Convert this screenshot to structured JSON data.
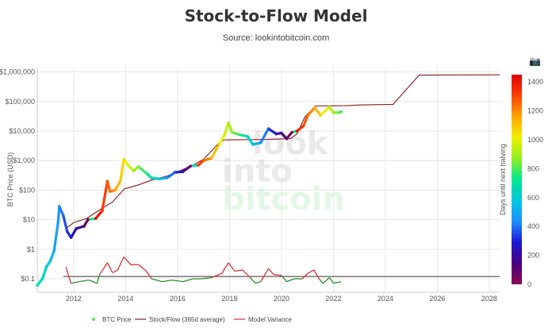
{
  "header": {
    "title": "Stock-to-Flow Model",
    "subtitle": "Source: lookintobitcoin.com",
    "camera_icon": "camera-icon"
  },
  "watermark": {
    "line1": "look",
    "line2": "into",
    "line3": "bitcoin"
  },
  "chart_data": {
    "type": "line",
    "title": "Stock-to-Flow Model",
    "ylabel": "BTC Price (USD)",
    "yscale": "log",
    "ylim": [
      0.035,
      1500000
    ],
    "xlim": [
      2010.6,
      2028.4
    ],
    "x_ticks": [
      "2012",
      "2014",
      "2016",
      "2018",
      "2020",
      "2022",
      "2024",
      "2026",
      "2028"
    ],
    "y_ticks": [
      {
        "value": 1000000,
        "label": "$1,000,000"
      },
      {
        "value": 100000,
        "label": "$100,000"
      },
      {
        "value": 10000,
        "label": "$10,000"
      },
      {
        "value": 1000,
        "label": "$1,000"
      },
      {
        "value": 100,
        "label": "$100"
      },
      {
        "value": 10,
        "label": "$10"
      },
      {
        "value": 1,
        "label": "$1"
      },
      {
        "value": 0.1,
        "label": "$0.1"
      }
    ],
    "colorbar": {
      "label": "Days until next halving",
      "min": 0,
      "max": 1450,
      "ticks": [
        "0",
        "200",
        "400",
        "600",
        "800",
        "1000",
        "1200",
        "1400"
      ],
      "colors": [
        "#8b0a50",
        "#4b0082",
        "#1a1ad4",
        "#1e90ff",
        "#00c8e0",
        "#00e890",
        "#90ee20",
        "#f0f000",
        "#ffa500",
        "#ff4000",
        "#e00000"
      ]
    },
    "series": [
      {
        "name": "BTC Price",
        "color_by": "days_until_next_halving",
        "points": [
          {
            "x": 2010.6,
            "y": 0.06,
            "d": 700
          },
          {
            "x": 2010.8,
            "y": 0.1,
            "d": 660
          },
          {
            "x": 2010.95,
            "y": 0.25,
            "d": 610
          },
          {
            "x": 2011.1,
            "y": 0.4,
            "d": 560
          },
          {
            "x": 2011.25,
            "y": 0.9,
            "d": 500
          },
          {
            "x": 2011.4,
            "y": 8,
            "d": 450
          },
          {
            "x": 2011.45,
            "y": 28,
            "d": 430
          },
          {
            "x": 2011.6,
            "y": 14,
            "d": 380
          },
          {
            "x": 2011.75,
            "y": 4,
            "d": 330
          },
          {
            "x": 2011.9,
            "y": 2.5,
            "d": 280
          },
          {
            "x": 2012.1,
            "y": 5,
            "d": 210
          },
          {
            "x": 2012.4,
            "y": 6,
            "d": 110
          },
          {
            "x": 2012.55,
            "y": 10,
            "d": 60
          },
          {
            "x": 2012.85,
            "y": 11,
            "d": 1440
          },
          {
            "x": 2013.1,
            "y": 20,
            "d": 1350
          },
          {
            "x": 2013.3,
            "y": 200,
            "d": 1280
          },
          {
            "x": 2013.4,
            "y": 90,
            "d": 1240
          },
          {
            "x": 2013.6,
            "y": 100,
            "d": 1170
          },
          {
            "x": 2013.8,
            "y": 200,
            "d": 1100
          },
          {
            "x": 2013.93,
            "y": 1100,
            "d": 1050
          },
          {
            "x": 2014.1,
            "y": 700,
            "d": 990
          },
          {
            "x": 2014.3,
            "y": 450,
            "d": 920
          },
          {
            "x": 2014.5,
            "y": 620,
            "d": 850
          },
          {
            "x": 2014.8,
            "y": 370,
            "d": 740
          },
          {
            "x": 2015.0,
            "y": 260,
            "d": 670
          },
          {
            "x": 2015.3,
            "y": 240,
            "d": 560
          },
          {
            "x": 2015.6,
            "y": 260,
            "d": 450
          },
          {
            "x": 2015.9,
            "y": 400,
            "d": 340
          },
          {
            "x": 2016.2,
            "y": 420,
            "d": 230
          },
          {
            "x": 2016.5,
            "y": 650,
            "d": 20
          },
          {
            "x": 2016.8,
            "y": 700,
            "d": 1340
          },
          {
            "x": 2017.0,
            "y": 1000,
            "d": 1270
          },
          {
            "x": 2017.3,
            "y": 1200,
            "d": 1160
          },
          {
            "x": 2017.6,
            "y": 3500,
            "d": 1050
          },
          {
            "x": 2017.8,
            "y": 7000,
            "d": 980
          },
          {
            "x": 2017.96,
            "y": 19000,
            "d": 920
          },
          {
            "x": 2018.1,
            "y": 9000,
            "d": 870
          },
          {
            "x": 2018.4,
            "y": 7500,
            "d": 760
          },
          {
            "x": 2018.7,
            "y": 6500,
            "d": 650
          },
          {
            "x": 2018.9,
            "y": 3500,
            "d": 570
          },
          {
            "x": 2019.2,
            "y": 4000,
            "d": 460
          },
          {
            "x": 2019.5,
            "y": 12000,
            "d": 350
          },
          {
            "x": 2019.8,
            "y": 8000,
            "d": 240
          },
          {
            "x": 2020.0,
            "y": 8500,
            "d": 160
          },
          {
            "x": 2020.2,
            "y": 5500,
            "d": 90
          },
          {
            "x": 2020.4,
            "y": 9000,
            "d": 10
          },
          {
            "x": 2020.6,
            "y": 10000,
            "d": 1400
          },
          {
            "x": 2020.85,
            "y": 15000,
            "d": 1310
          },
          {
            "x": 2021.0,
            "y": 32000,
            "d": 1250
          },
          {
            "x": 2021.28,
            "y": 62000,
            "d": 1150
          },
          {
            "x": 2021.5,
            "y": 34000,
            "d": 1070
          },
          {
            "x": 2021.85,
            "y": 65000,
            "d": 940
          },
          {
            "x": 2022.0,
            "y": 42000,
            "d": 890
          },
          {
            "x": 2022.2,
            "y": 42000,
            "d": 820
          },
          {
            "x": 2022.3,
            "y": 45000,
            "d": 780
          }
        ]
      },
      {
        "name": "Stock/Flow (365d average)",
        "color": "#8b1a1a",
        "points": [
          {
            "x": 2011.7,
            "y": 5
          },
          {
            "x": 2012.0,
            "y": 8
          },
          {
            "x": 2012.5,
            "y": 11
          },
          {
            "x": 2012.95,
            "y": 20
          },
          {
            "x": 2013.5,
            "y": 40
          },
          {
            "x": 2013.95,
            "y": 110
          },
          {
            "x": 2014.5,
            "y": 150
          },
          {
            "x": 2015.0,
            "y": 220
          },
          {
            "x": 2015.6,
            "y": 300
          },
          {
            "x": 2016.6,
            "y": 700
          },
          {
            "x": 2017.0,
            "y": 1100
          },
          {
            "x": 2017.6,
            "y": 4000
          },
          {
            "x": 2017.8,
            "y": 5000
          },
          {
            "x": 2019.5,
            "y": 5200
          },
          {
            "x": 2020.35,
            "y": 5500
          },
          {
            "x": 2020.6,
            "y": 8000
          },
          {
            "x": 2020.9,
            "y": 30000
          },
          {
            "x": 2021.3,
            "y": 70000
          },
          {
            "x": 2021.7,
            "y": 71000
          },
          {
            "x": 2022.5,
            "y": 72000
          },
          {
            "x": 2023.0,
            "y": 76000
          },
          {
            "x": 2024.3,
            "y": 80000
          },
          {
            "x": 2024.7,
            "y": 200000
          },
          {
            "x": 2025.3,
            "y": 780000
          },
          {
            "x": 2028.4,
            "y": 800000
          }
        ]
      },
      {
        "name": "Model Variance",
        "baseline": 0.12,
        "points": [
          {
            "x": 2011.7,
            "y": 0.25
          },
          {
            "x": 2011.9,
            "y": 0.07
          },
          {
            "x": 2012.2,
            "y": 0.08
          },
          {
            "x": 2012.6,
            "y": 0.09
          },
          {
            "x": 2012.9,
            "y": 0.07
          },
          {
            "x": 2013.0,
            "y": 0.14
          },
          {
            "x": 2013.3,
            "y": 0.35
          },
          {
            "x": 2013.5,
            "y": 0.16
          },
          {
            "x": 2013.7,
            "y": 0.2
          },
          {
            "x": 2013.93,
            "y": 0.55
          },
          {
            "x": 2014.2,
            "y": 0.3
          },
          {
            "x": 2014.5,
            "y": 0.3
          },
          {
            "x": 2014.8,
            "y": 0.18
          },
          {
            "x": 2015.0,
            "y": 0.1
          },
          {
            "x": 2015.4,
            "y": 0.08
          },
          {
            "x": 2015.8,
            "y": 0.09
          },
          {
            "x": 2016.2,
            "y": 0.08
          },
          {
            "x": 2016.6,
            "y": 0.1
          },
          {
            "x": 2016.9,
            "y": 0.1
          },
          {
            "x": 2017.3,
            "y": 0.11
          },
          {
            "x": 2017.7,
            "y": 0.15
          },
          {
            "x": 2017.96,
            "y": 0.35
          },
          {
            "x": 2018.2,
            "y": 0.18
          },
          {
            "x": 2018.5,
            "y": 0.2
          },
          {
            "x": 2018.8,
            "y": 0.11
          },
          {
            "x": 2019.0,
            "y": 0.07
          },
          {
            "x": 2019.2,
            "y": 0.08
          },
          {
            "x": 2019.5,
            "y": 0.22
          },
          {
            "x": 2019.7,
            "y": 0.14
          },
          {
            "x": 2020.0,
            "y": 0.13
          },
          {
            "x": 2020.2,
            "y": 0.08
          },
          {
            "x": 2020.5,
            "y": 0.1
          },
          {
            "x": 2020.8,
            "y": 0.1
          },
          {
            "x": 2021.0,
            "y": 0.15
          },
          {
            "x": 2021.25,
            "y": 0.2
          },
          {
            "x": 2021.45,
            "y": 0.1
          },
          {
            "x": 2021.6,
            "y": 0.07
          },
          {
            "x": 2021.85,
            "y": 0.11
          },
          {
            "x": 2022.0,
            "y": 0.07
          },
          {
            "x": 2022.3,
            "y": 0.08
          }
        ]
      }
    ],
    "legend": [
      {
        "label": "BTC Price",
        "color": "#44ee44",
        "kind": "dot"
      },
      {
        "label": "Stock/Flow (365d average)",
        "color": "#8b1a1a",
        "kind": "line"
      },
      {
        "label": "Model Variance",
        "color": "#e03030",
        "kind": "line"
      }
    ],
    "colors": {
      "above_baseline": "#e03030",
      "below_baseline": "#2e8b2e",
      "baseline": "#333333",
      "grid": "#e6e6e6"
    }
  }
}
